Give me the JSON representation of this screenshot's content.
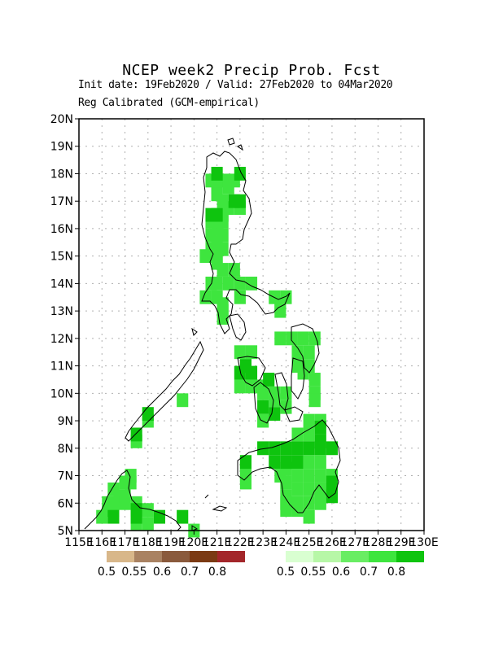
{
  "header": {
    "title": "NCEP week2 Precip Prob. Fcst",
    "line1": "Init date: 19Feb2020 / Valid: 27Feb2020 to 04Mar2020",
    "line2": "Reg Calibrated (GCM-empirical)"
  },
  "map": {
    "lon_range": [
      115,
      130
    ],
    "lat_range": [
      5,
      20
    ],
    "grid": true,
    "y_ticks": [
      "5N",
      "6N",
      "7N",
      "8N",
      "9N",
      "10N",
      "11N",
      "12N",
      "13N",
      "14N",
      "15N",
      "16N",
      "17N",
      "18N",
      "19N",
      "20N"
    ],
    "x_ticks": [
      "115E",
      "116E",
      "117E",
      "118E",
      "119E",
      "120E",
      "121E",
      "122E",
      "123E",
      "124E",
      "125E",
      "126E",
      "127E",
      "128E",
      "129E",
      "130E"
    ],
    "colors": {
      "above_0.5": "#d9ffd1",
      "above_0.55": "#b7f7a7",
      "above_0.6": "#69ed63",
      "above_0.7": "#3ee53e",
      "above_0.8": "#0ec40e",
      "below_0.5": "#d8b78a",
      "below_0.55": "#a98262",
      "below_0.6": "#8a5a3c",
      "below_0.7": "#7b3a13",
      "below_0.8": "#a3262a",
      "coast": "#000000",
      "grid": "#b0b0b0"
    },
    "cells_dark": [
      [
        116.5,
        5.5
      ],
      [
        117.5,
        5.5
      ],
      [
        118.5,
        5.5
      ],
      [
        119.5,
        5.5
      ],
      [
        117.5,
        5.75
      ],
      [
        121.0,
        18.0
      ],
      [
        122.0,
        18.0
      ],
      [
        120.75,
        16.5
      ],
      [
        121.0,
        16.5
      ],
      [
        121.75,
        17.0
      ],
      [
        122.0,
        17.0
      ],
      [
        122.0,
        10.75
      ],
      [
        122.25,
        11.0
      ],
      [
        122.5,
        10.75
      ],
      [
        122.25,
        7.5
      ],
      [
        123.25,
        10.5
      ],
      [
        123.0,
        9.5
      ],
      [
        123.5,
        9.25
      ],
      [
        123.0,
        8.0
      ],
      [
        123.5,
        8.0
      ],
      [
        124.0,
        8.0
      ],
      [
        124.5,
        8.0
      ],
      [
        125.0,
        8.0
      ],
      [
        125.5,
        8.0
      ],
      [
        126.0,
        8.0
      ],
      [
        123.5,
        7.5
      ],
      [
        124.0,
        7.5
      ],
      [
        124.5,
        7.5
      ],
      [
        125.5,
        8.25
      ],
      [
        125.5,
        8.75
      ],
      [
        126.0,
        6.75
      ],
      [
        126.0,
        6.5
      ],
      [
        126.0,
        6.25
      ],
      [
        118.0,
        9.25
      ],
      [
        117.5,
        8.5
      ]
    ],
    "cells_med": [
      [
        116.0,
        5.5
      ],
      [
        116.25,
        5.75
      ],
      [
        116.5,
        6.0
      ],
      [
        116.75,
        6.25
      ],
      [
        117.0,
        6.25
      ],
      [
        117.25,
        6.75
      ],
      [
        117.0,
        6.75
      ],
      [
        117.25,
        7.0
      ],
      [
        116.25,
        6.0
      ],
      [
        116.5,
        6.5
      ],
      [
        117.0,
        6.0
      ],
      [
        117.5,
        6.0
      ],
      [
        118.0,
        5.75
      ],
      [
        116.5,
        5.75
      ],
      [
        117.5,
        5.25
      ],
      [
        118.0,
        5.25
      ],
      [
        120.75,
        17.75
      ],
      [
        121.25,
        17.75
      ],
      [
        121.5,
        17.75
      ],
      [
        121.75,
        17.75
      ],
      [
        121.0,
        17.5
      ],
      [
        121.5,
        17.5
      ],
      [
        121.0,
        17.25
      ],
      [
        121.25,
        17.0
      ],
      [
        121.5,
        16.75
      ],
      [
        121.25,
        16.5
      ],
      [
        122.0,
        16.75
      ],
      [
        120.75,
        16.25
      ],
      [
        121.25,
        16.25
      ],
      [
        121.0,
        16.0
      ],
      [
        120.75,
        15.75
      ],
      [
        121.25,
        15.75
      ],
      [
        121.0,
        15.5
      ],
      [
        120.75,
        15.25
      ],
      [
        121.25,
        15.25
      ],
      [
        120.5,
        15.0
      ],
      [
        121.0,
        15.0
      ],
      [
        121.0,
        14.75
      ],
      [
        121.25,
        14.5
      ],
      [
        121.75,
        14.5
      ],
      [
        122.0,
        14.0
      ],
      [
        121.5,
        14.0
      ],
      [
        121.0,
        14.0
      ],
      [
        120.75,
        14.0
      ],
      [
        122.5,
        14.0
      ],
      [
        120.5,
        13.5
      ],
      [
        121.0,
        13.5
      ],
      [
        121.25,
        13.25
      ],
      [
        121.25,
        13.0
      ],
      [
        121.25,
        12.75
      ],
      [
        122.0,
        13.5
      ],
      [
        123.5,
        13.5
      ],
      [
        124.0,
        13.5
      ],
      [
        123.75,
        13.25
      ],
      [
        123.75,
        13.0
      ],
      [
        124.25,
        12.0
      ],
      [
        124.75,
        12.0
      ],
      [
        125.25,
        12.0
      ],
      [
        123.75,
        12.0
      ],
      [
        124.5,
        11.5
      ],
      [
        125.0,
        11.5
      ],
      [
        124.5,
        11.0
      ],
      [
        125.0,
        11.0
      ],
      [
        124.75,
        10.75
      ],
      [
        125.25,
        10.5
      ],
      [
        125.25,
        10.0
      ],
      [
        125.25,
        9.75
      ],
      [
        122.0,
        11.5
      ],
      [
        122.5,
        11.5
      ],
      [
        122.0,
        10.25
      ],
      [
        122.5,
        10.25
      ],
      [
        123.0,
        10.25
      ],
      [
        123.0,
        10.0
      ],
      [
        123.5,
        10.0
      ],
      [
        124.0,
        10.0
      ],
      [
        123.5,
        9.75
      ],
      [
        124.0,
        9.5
      ],
      [
        123.0,
        9.0
      ],
      [
        122.25,
        7.25
      ],
      [
        122.25,
        7.0
      ],
      [
        122.25,
        6.75
      ],
      [
        124.5,
        8.5
      ],
      [
        125.0,
        8.5
      ],
      [
        125.5,
        9.0
      ],
      [
        125.0,
        9.0
      ],
      [
        124.0,
        7.25
      ],
      [
        124.5,
        7.0
      ],
      [
        125.0,
        7.5
      ],
      [
        125.0,
        7.0
      ],
      [
        125.5,
        7.5
      ],
      [
        125.5,
        7.0
      ],
      [
        124.0,
        6.75
      ],
      [
        124.5,
        6.5
      ],
      [
        125.0,
        6.5
      ],
      [
        125.5,
        6.5
      ],
      [
        124.0,
        6.25
      ],
      [
        124.5,
        6.0
      ],
      [
        125.0,
        6.0
      ],
      [
        125.5,
        6.0
      ],
      [
        124.0,
        6.0
      ],
      [
        125.0,
        5.5
      ],
      [
        123.75,
        7.0
      ],
      [
        126.0,
        7.0
      ],
      [
        125.5,
        6.25
      ],
      [
        124.0,
        5.75
      ],
      [
        124.5,
        5.75
      ],
      [
        119.5,
        9.75
      ],
      [
        118.0,
        9.0
      ],
      [
        117.5,
        8.25
      ],
      [
        120.0,
        5.0
      ]
    ],
    "legends": {
      "below_labels": [
        "0.5",
        "0.55",
        "0.6",
        "0.7",
        "0.8"
      ],
      "above_labels": [
        "0.5",
        "0.55",
        "0.6",
        "0.7",
        "0.8"
      ]
    }
  }
}
